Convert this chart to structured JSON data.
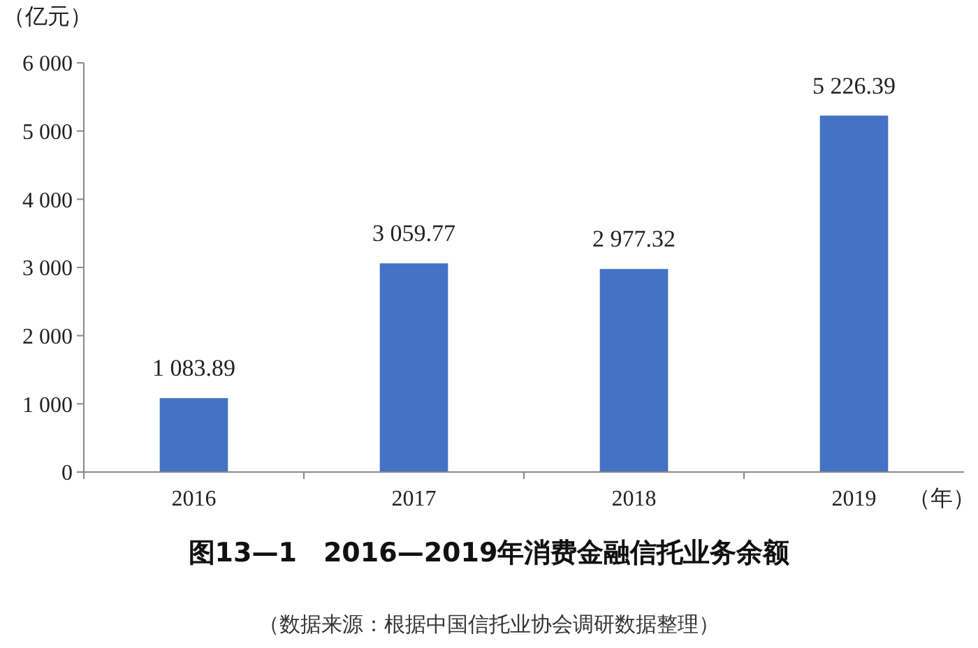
{
  "chart_data": {
    "type": "bar",
    "title": "图13—1　2016—2019年消费金融信托业务余额",
    "ylabel": "（亿元）",
    "xlabel": "（年）",
    "annotations": [
      "（数据来源：根据中国信托业协会调研数据整理）"
    ],
    "categories": [
      "2016",
      "2017",
      "2018",
      "2019"
    ],
    "values": [
      1083.89,
      3059.77,
      2977.32,
      5226.39
    ],
    "value_labels": [
      "1 083.89",
      "3 059.77",
      "2 977.32",
      "5 226.39"
    ],
    "color": "#4472c4",
    "ylim": [
      0,
      6000
    ],
    "yticks": [
      0,
      {
        "value": 1000,
        "label": "1 000"
      },
      {
        "value": 2000,
        "label": "2 000"
      },
      {
        "value": 3000,
        "label": "3 000"
      },
      {
        "value": 4000,
        "label": "4 000"
      },
      {
        "value": 5000,
        "label": "5 000"
      },
      {
        "value": 6000,
        "label": "6 000"
      }
    ],
    "grid": false
  }
}
